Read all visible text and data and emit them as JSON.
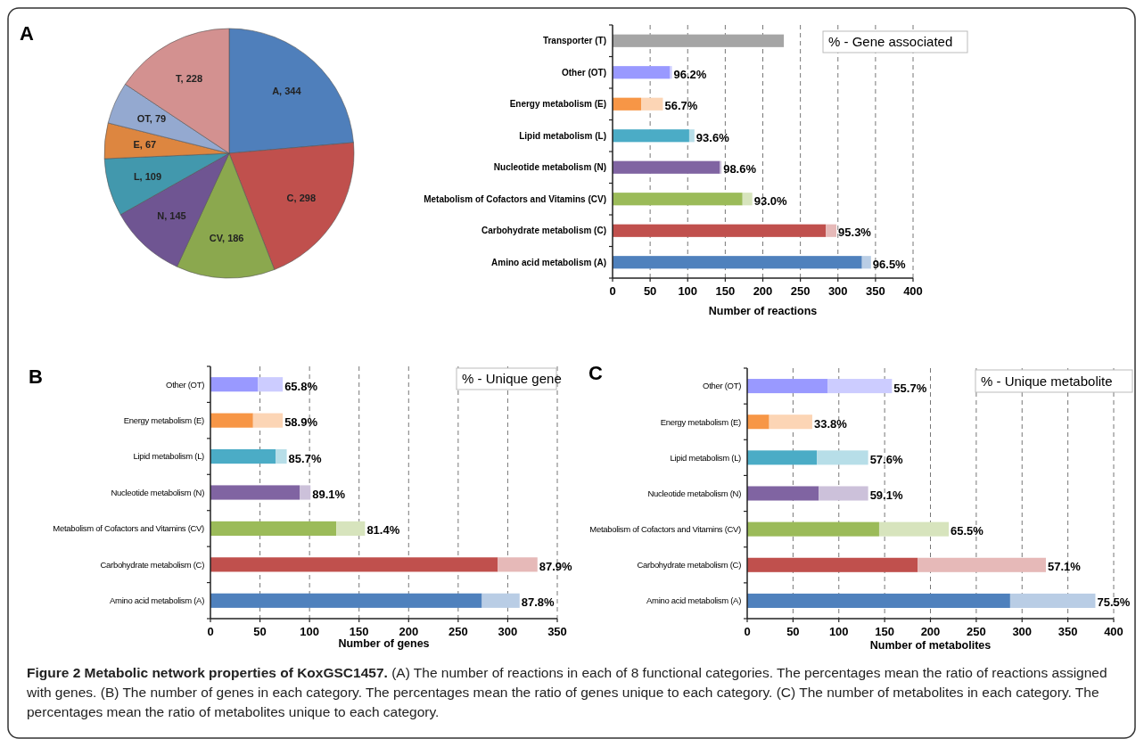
{
  "chart_data": [
    {
      "type": "pie",
      "title": "A",
      "categories": [
        "A, 344",
        "C, 298",
        "CV, 186",
        "N, 145",
        "L, 109",
        "E, 67",
        "OT, 79",
        "T, 228"
      ],
      "values": [
        344,
        298,
        186,
        145,
        109,
        67,
        79,
        228
      ],
      "colors": [
        "#4f7fbb",
        "#c0504d",
        "#8ba84e",
        "#6f5592",
        "#4298ad",
        "#dd8640",
        "#94a9d0",
        "#d39190"
      ]
    },
    {
      "type": "bar",
      "orientation": "horizontal",
      "stacked": true,
      "xlabel": "Number of reactions",
      "categories": [
        "Transporter (T)",
        "Other (OT)",
        "Energy metabolism (E)",
        "Lipid metabolism (L)",
        "Nucleotide metabolism (N)",
        "Metabolism of Cofactors and Vitamins (CV)",
        "Carbohydrate metabolism (C)",
        "Amino acid metabolism (A)"
      ],
      "xlim": [
        0,
        400
      ],
      "xticks": [
        0,
        50,
        100,
        150,
        200,
        250,
        300,
        350,
        400
      ],
      "grid": "x",
      "annotations": [
        "% - Gene associated",
        {
          "text": "96.2%",
          "x": 79,
          "y": "Other (OT)"
        },
        {
          "text": "56.7%",
          "x": 67,
          "y": "Energy metabolism (E)"
        },
        {
          "text": "93.6%",
          "x": 109,
          "y": "Lipid metabolism (L)"
        },
        {
          "text": "98.6%",
          "x": 145,
          "y": "Nucleotide metabolism (N)"
        },
        {
          "text": "93.0%",
          "x": 186,
          "y": "Metabolism of Cofactors and Vitamins (CV)"
        },
        {
          "text": "95.3%",
          "x": 298,
          "y": "Carbohydrate metabolism (C)"
        },
        {
          "text": "96.5%",
          "x": 344,
          "y": "Amino acid metabolism (A)"
        }
      ],
      "series": [
        {
          "values": [
            228,
            76,
            38,
            102,
            143,
            173,
            284,
            332
          ],
          "colors": [
            "#a5a5a5",
            "#9999ff",
            "#f79646",
            "#4bacc6",
            "#8064a2",
            "#9bbb59",
            "#c0504d",
            "#4f81bd"
          ]
        },
        {
          "values": [
            null,
            3,
            29,
            7,
            2,
            13,
            14,
            12
          ],
          "colors": [
            null,
            "#ccccff",
            "#fcd5b5",
            "#b7dee8",
            "#ccc1da",
            "#d7e4bd",
            "#e6b9b8",
            "#b9cde5"
          ]
        }
      ]
    },
    {
      "type": "bar",
      "orientation": "horizontal",
      "stacked": true,
      "title": "B",
      "xlabel": "Number of genes",
      "categories": [
        "Other (OT)",
        "Energy metabolism (E)",
        "Lipid metabolism (L)",
        "Nucleotide metabolism (N)",
        "Metabolism of Cofactors and Vitamins (CV)",
        "Carbohydrate metabolism (C)",
        "Amino acid metabolism (A)"
      ],
      "xlim": [
        0,
        350
      ],
      "xticks": [
        0,
        50,
        100,
        150,
        200,
        250,
        300,
        350
      ],
      "grid": "x",
      "annotations": [
        "% - Unique gene",
        {
          "text": "65.8%",
          "x": 73,
          "y": "Other (OT)"
        },
        {
          "text": "58.9%",
          "x": 73,
          "y": "Energy metabolism (E)"
        },
        {
          "text": "85.7%",
          "x": 77,
          "y": "Lipid metabolism (L)"
        },
        {
          "text": "89.1%",
          "x": 101,
          "y": "Nucleotide metabolism (N)"
        },
        {
          "text": "81.4%",
          "x": 156,
          "y": "Metabolism of Cofactors and Vitamins (CV)"
        },
        {
          "text": "87.9%",
          "x": 330,
          "y": "Carbohydrate metabolism (C)"
        },
        {
          "text": "87.8%",
          "x": 312,
          "y": "Amino acid metabolism (A)"
        }
      ],
      "series": [
        {
          "values": [
            48,
            43,
            66,
            90,
            127,
            290,
            274
          ],
          "colors": [
            "#9999ff",
            "#f79646",
            "#4bacc6",
            "#8064a2",
            "#9bbb59",
            "#c0504d",
            "#4f81bd"
          ]
        },
        {
          "values": [
            25,
            30,
            11,
            11,
            29,
            40,
            38
          ],
          "colors": [
            "#ccccff",
            "#fcd5b5",
            "#b7dee8",
            "#ccc1da",
            "#d7e4bd",
            "#e6b9b8",
            "#b9cde5"
          ]
        }
      ]
    },
    {
      "type": "bar",
      "orientation": "horizontal",
      "stacked": true,
      "title": "C",
      "xlabel": "Number of metabolites",
      "categories": [
        "Other (OT)",
        "Energy metabolism (E)",
        "Lipid metabolism (L)",
        "Nucleotide metabolism (N)",
        "Metabolism of Cofactors and Vitamins (CV)",
        "Carbohydrate metabolism (C)",
        "Amino acid metabolism (A)"
      ],
      "xlim": [
        0,
        400
      ],
      "xticks": [
        0,
        50,
        100,
        150,
        200,
        250,
        300,
        350,
        400
      ],
      "grid": "x",
      "annotations": [
        "% - Unique metabolite",
        {
          "text": "55.7%",
          "x": 158,
          "y": "Other (OT)"
        },
        {
          "text": "33.8%",
          "x": 71,
          "y": "Energy metabolism (E)"
        },
        {
          "text": "57.6%",
          "x": 132,
          "y": "Lipid metabolism (L)"
        },
        {
          "text": "59.1%",
          "x": 132,
          "y": "Nucleotide metabolism (N)"
        },
        {
          "text": "65.5%",
          "x": 220,
          "y": "Metabolism of Cofactors and Vitamins (CV)"
        },
        {
          "text": "57.1%",
          "x": 326,
          "y": "Carbohydrate metabolism (C)"
        },
        {
          "text": "75.5%",
          "x": 380,
          "y": "Amino acid metabolism (A)"
        },
        "Figure 2 Metabolic network properties of KoxGSC1457.",
        "(A) The number of reactions in each of 8 functional categories. The percentages mean the ratio of reactions assigned with genes. (B) The number of genes in each category. The percentages mean the ratio of genes unique to each category. (C) The number of metabolites in each category. The percentages mean the ratio of metabolites unique to each category."
      ],
      "series": [
        {
          "values": [
            88,
            24,
            76,
            78,
            144,
            186,
            287
          ],
          "colors": [
            "#9999ff",
            "#f79646",
            "#4bacc6",
            "#8064a2",
            "#9bbb59",
            "#c0504d",
            "#4f81bd"
          ]
        },
        {
          "values": [
            70,
            47,
            56,
            54,
            76,
            140,
            93
          ],
          "colors": [
            "#ccccff",
            "#fcd5b5",
            "#b7dee8",
            "#ccc1da",
            "#d7e4bd",
            "#e6b9b8",
            "#b9cde5"
          ]
        }
      ]
    }
  ]
}
